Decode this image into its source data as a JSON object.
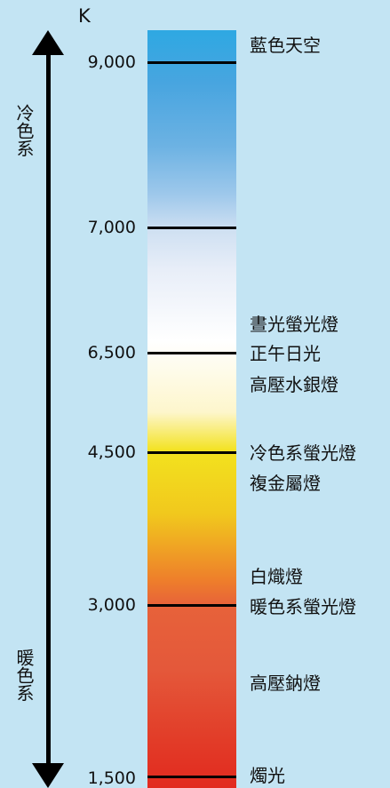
{
  "unit": "K",
  "axis": {
    "top_label": "冷色系",
    "bottom_label": "暖色系"
  },
  "ticks": [
    {
      "value": "9,000",
      "kelvin": 9000
    },
    {
      "value": "7,000",
      "kelvin": 7000
    },
    {
      "value": "6,500",
      "kelvin": 6500
    },
    {
      "value": "4,500",
      "kelvin": 4500
    },
    {
      "value": "3,000",
      "kelvin": 3000
    },
    {
      "value": "1,500",
      "kelvin": 1500
    }
  ],
  "sources": [
    "藍色天空",
    "晝光螢光燈",
    "正午日光",
    "高壓水銀燈",
    "冷色系螢光燈",
    "複金屬燈",
    "白熾燈",
    "暖色系螢光燈",
    "高壓鈉燈",
    "燭光"
  ]
}
